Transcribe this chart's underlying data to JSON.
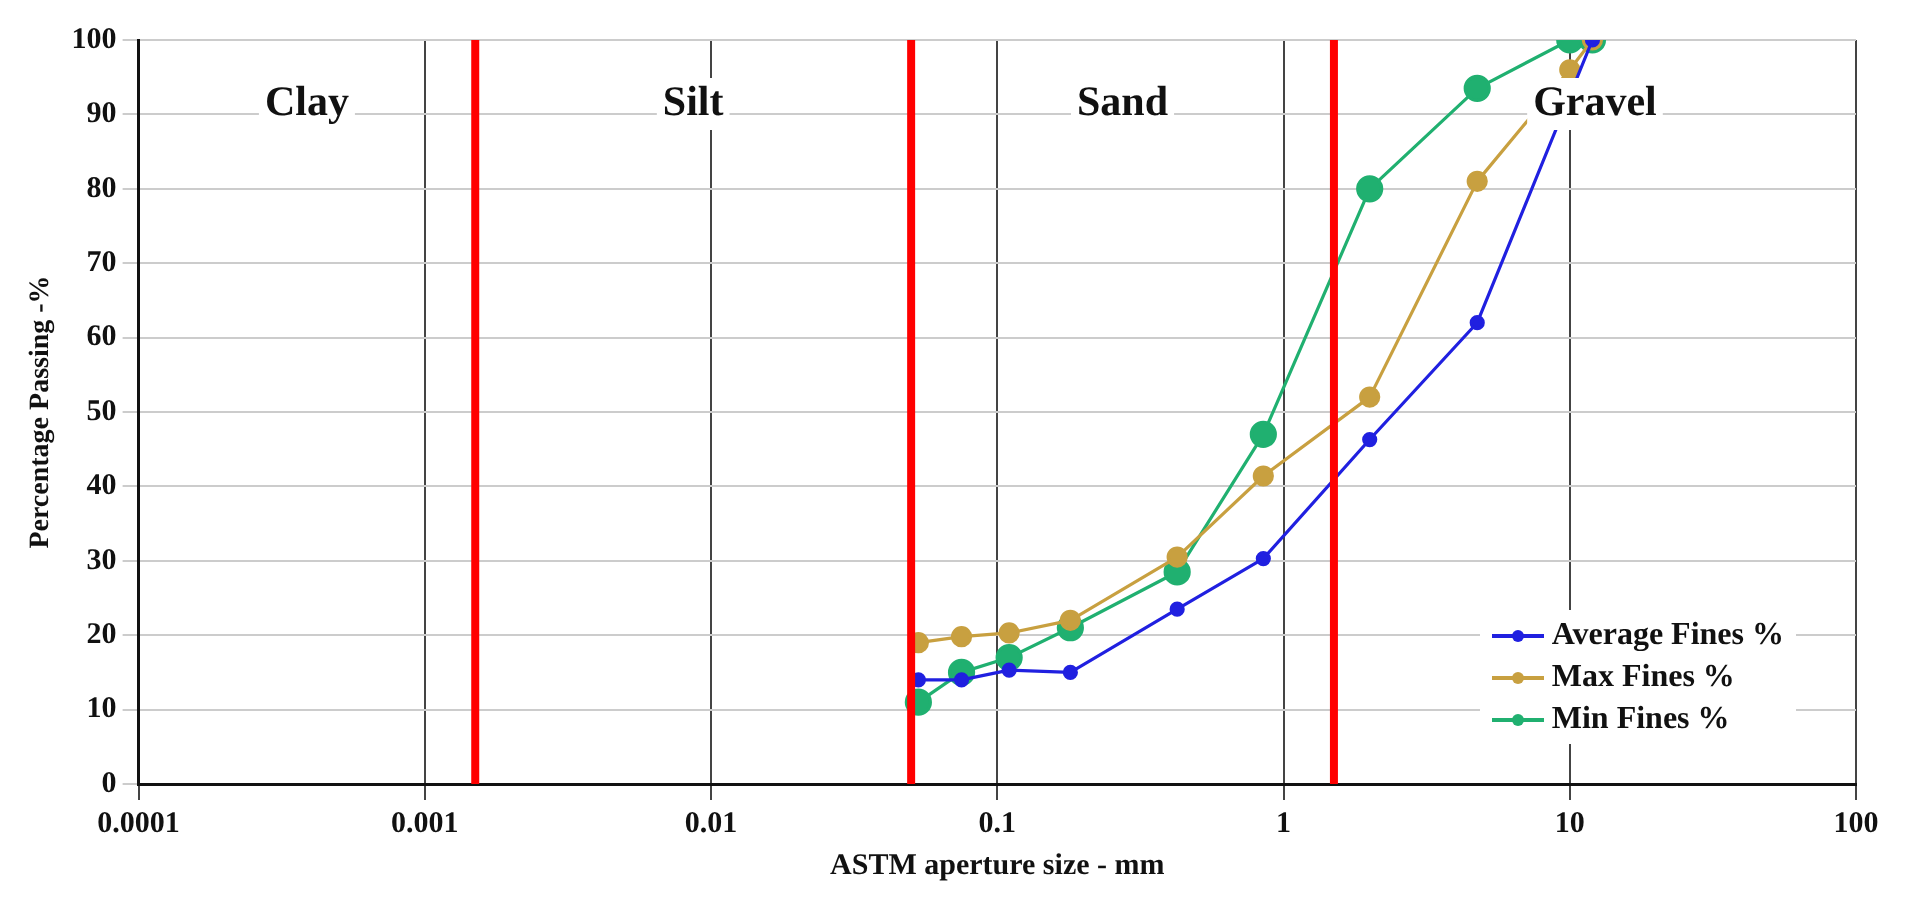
{
  "chart_data": {
    "type": "line",
    "xlabel": "ASTM aperture size - mm",
    "ylabel": "Percentage Passing -%",
    "log": "x",
    "xlim": [
      0.0001,
      100
    ],
    "xticks": [
      0.0001,
      0.001,
      0.01,
      0.1,
      1,
      10,
      100
    ],
    "ylim": [
      0,
      100
    ],
    "yticks": [
      0,
      10,
      20,
      30,
      40,
      50,
      60,
      70,
      80,
      90,
      100
    ],
    "grid": true,
    "legend": "bottom right",
    "marker": "circle",
    "line_style": "solid",
    "series": [
      {
        "name": "Average Fines %",
        "color": "#2020e0",
        "x": [
          0.053,
          0.075,
          0.11,
          0.18,
          0.425,
          0.85,
          2,
          4.75,
          12
        ],
        "values": [
          14,
          14,
          15.3,
          15,
          23.5,
          30.3,
          46.3,
          62,
          100
        ]
      },
      {
        "name": "Max Fines %",
        "color": "#c8a040",
        "x": [
          0.053,
          0.075,
          0.11,
          0.18,
          0.425,
          0.85,
          2,
          4.75,
          10,
          12
        ],
        "values": [
          19,
          19.8,
          20.3,
          22,
          30.5,
          41.4,
          52,
          81,
          96,
          100
        ]
      },
      {
        "name": "Min Fines %",
        "color": "#20b070",
        "x": [
          0.053,
          0.075,
          0.11,
          0.18,
          0.425,
          0.85,
          2,
          4.75,
          10,
          12
        ],
        "values": [
          11,
          15,
          17,
          21,
          28.5,
          47,
          80,
          93.5,
          100,
          100
        ]
      }
    ],
    "ref_lines": [
      {
        "axis": "x",
        "value": 0.0015,
        "color": "#ff0000"
      },
      {
        "axis": "x",
        "value": 0.05,
        "color": "#ff0000"
      },
      {
        "axis": "x",
        "value": 1.5,
        "color": "#ff0000"
      }
    ],
    "annotations": [
      "Clay",
      "Silt",
      "Sand",
      "Gravel"
    ]
  }
}
